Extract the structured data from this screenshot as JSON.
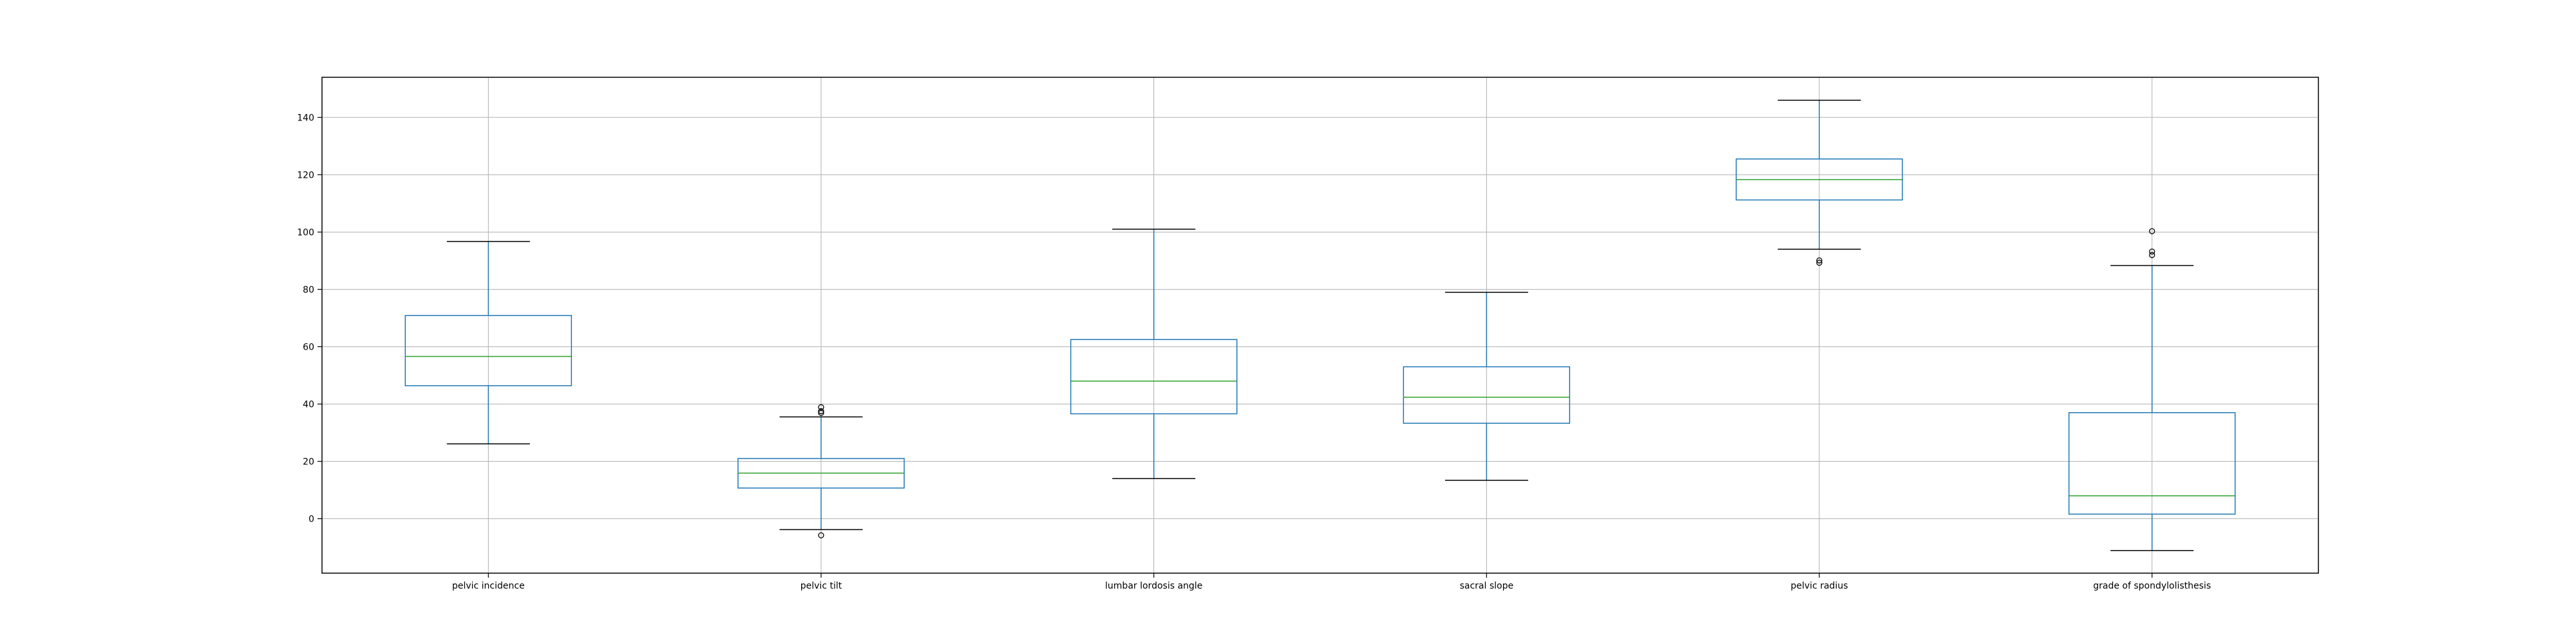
{
  "chart_data": {
    "type": "boxplot",
    "title": "",
    "xlabel": "",
    "ylabel": "",
    "grid": true,
    "ylim": [
      -19,
      154
    ],
    "yticks": [
      0,
      20,
      40,
      60,
      80,
      100,
      120,
      140
    ],
    "categories": [
      "pelvic incidence",
      "pelvic tilt",
      "lumbar lordosis angle",
      "sacral slope",
      "pelvic radius",
      "grade of spondylolisthesis"
    ],
    "boxes": [
      {
        "label": "pelvic incidence",
        "whisker_low": 26.1,
        "q1": 46.4,
        "median": 56.6,
        "q3": 70.9,
        "whisker_high": 96.7,
        "outliers": []
      },
      {
        "label": "pelvic tilt",
        "whisker_low": -3.8,
        "q1": 10.7,
        "median": 15.9,
        "q3": 21.0,
        "whisker_high": 35.5,
        "outliers": [
          -5.8,
          36.9,
          37.5,
          38.9
        ]
      },
      {
        "label": "lumbar lordosis angle",
        "whisker_low": 14.0,
        "q1": 36.6,
        "median": 48.0,
        "q3": 62.5,
        "whisker_high": 101.0,
        "outliers": []
      },
      {
        "label": "sacral slope",
        "whisker_low": 13.4,
        "q1": 33.3,
        "median": 42.4,
        "q3": 53.0,
        "whisker_high": 79.0,
        "outliers": []
      },
      {
        "label": "pelvic radius",
        "whisker_low": 94.0,
        "q1": 111.2,
        "median": 118.3,
        "q3": 125.5,
        "whisker_high": 146.0,
        "outliers": [
          89.3,
          90.1
        ]
      },
      {
        "label": "grade of spondylolisthesis",
        "whisker_low": -11.1,
        "q1": 1.6,
        "median": 8.0,
        "q3": 37.0,
        "whisker_high": 88.3,
        "outliers": [
          92.0,
          93.2,
          100.3
        ]
      }
    ],
    "colors": {
      "box": "#1f77b4",
      "median": "#2ca02c",
      "whisker_cap": "#000000",
      "grid": "#b0b0b0",
      "outlier": "#000000"
    }
  }
}
